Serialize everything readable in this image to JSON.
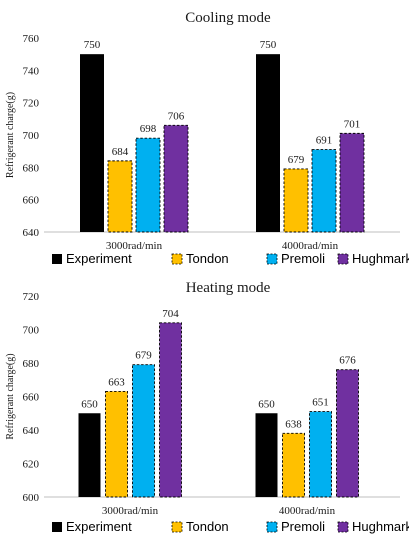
{
  "chart_data": [
    {
      "type": "bar",
      "title": "Cooling mode",
      "xlabel": "",
      "ylabel": "Refrigerant charge(g)",
      "ylim": [
        640,
        760
      ],
      "yticks": [
        640,
        660,
        680,
        700,
        720,
        740,
        760
      ],
      "categories": [
        "3000rad/min",
        "4000rad/min"
      ],
      "series": [
        {
          "name": "Experiment",
          "values": [
            750,
            750
          ],
          "color": "#000000"
        },
        {
          "name": "Tondon",
          "values": [
            684,
            679
          ],
          "color": "#FFC000"
        },
        {
          "name": "Premoli",
          "values": [
            698,
            691
          ],
          "color": "#00B0F0"
        },
        {
          "name": "Hughmark",
          "values": [
            706,
            701
          ],
          "color": "#7030A0"
        }
      ],
      "legend": "bottom",
      "grid": false
    },
    {
      "type": "bar",
      "title": "Heating mode",
      "xlabel": "",
      "ylabel": "Refrigerant charge(g)",
      "ylim": [
        600,
        720
      ],
      "yticks": [
        600,
        620,
        640,
        660,
        680,
        700,
        720
      ],
      "categories": [
        "3000rad/min",
        "4000rad/min"
      ],
      "series": [
        {
          "name": "Experiment",
          "values": [
            650,
            650
          ],
          "color": "#000000"
        },
        {
          "name": "Tondon",
          "values": [
            663,
            638
          ],
          "color": "#FFC000"
        },
        {
          "name": "Premoli",
          "values": [
            679,
            651
          ],
          "color": "#00B0F0"
        },
        {
          "name": "Hughmark",
          "values": [
            704,
            676
          ],
          "color": "#7030A0"
        }
      ],
      "legend": "bottom",
      "grid": false
    }
  ]
}
